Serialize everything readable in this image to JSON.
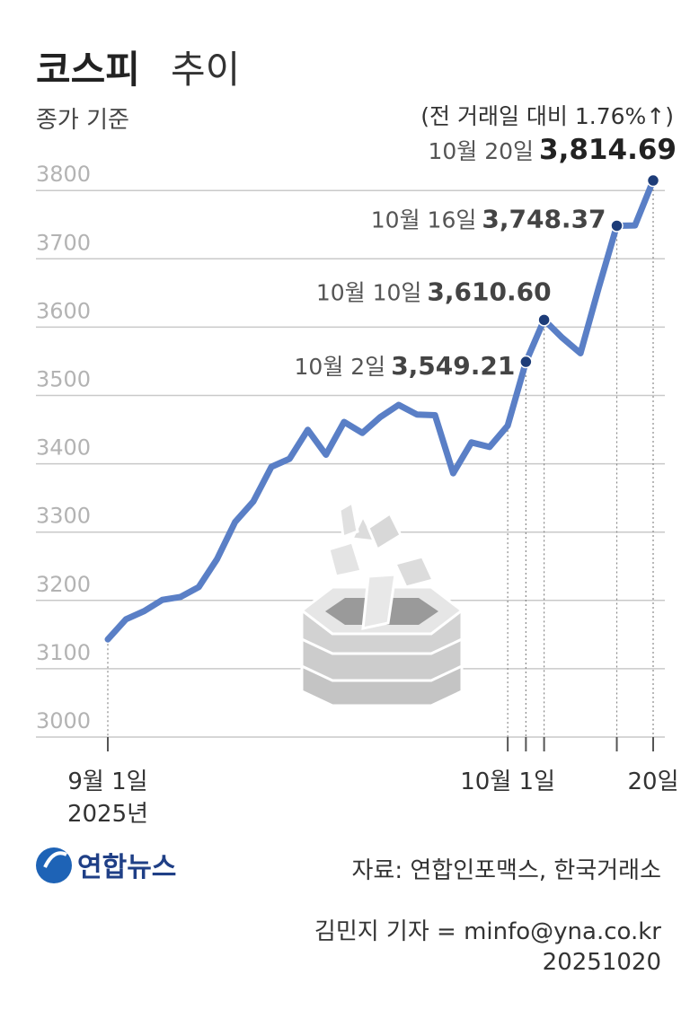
{
  "chart_data": {
    "type": "line",
    "title": "코스피",
    "title_suffix": "추이",
    "subtitle": "종가 기준",
    "note": "(전 거래일 대비 1.76%↑)",
    "categories": [
      "9월 1일",
      null,
      null,
      null,
      null,
      null,
      null,
      null,
      null,
      null,
      null,
      null,
      null,
      null,
      null,
      null,
      null,
      null,
      null,
      null,
      null,
      null,
      "10월 1일",
      null,
      null,
      null,
      null,
      null,
      null,
      null,
      "20일"
    ],
    "year_label": "2025년",
    "values": [
      3142.93,
      3172.35,
      3184.32,
      3200.83,
      3205.12,
      3219.59,
      3260.05,
      3314.53,
      3344.7,
      3395.54,
      3407.31,
      3449.62,
      3413.25,
      3461.3,
      3445.24,
      3468.65,
      3486.19,
      3472.14,
      3471.11,
      3386.05,
      3431.21,
      3424.6,
      3455.83,
      3549.21,
      3610.6,
      3584.55,
      3561.81,
      3657.28,
      3748.37,
      3748.89,
      3814.69
    ],
    "date_labels": [
      null,
      null,
      null,
      null,
      null,
      null,
      null,
      null,
      null,
      null,
      null,
      null,
      null,
      null,
      null,
      null,
      null,
      null,
      null,
      null,
      null,
      null,
      null,
      "10월 2일",
      "10월 10일",
      null,
      null,
      null,
      "10월 16일",
      null,
      "10월 20일"
    ],
    "value_labels": [
      null,
      null,
      null,
      null,
      null,
      null,
      null,
      null,
      null,
      null,
      null,
      null,
      null,
      null,
      null,
      null,
      null,
      null,
      null,
      null,
      null,
      null,
      null,
      "3,549.21",
      "3,610.60",
      null,
      null,
      null,
      "3,748.37",
      null,
      "3,814.69"
    ],
    "color": "#5a7fc6",
    "marker_color": "#1d3c78",
    "ylim": [
      3000,
      3850
    ],
    "yticks": [
      3000,
      3100,
      3200,
      3300,
      3400,
      3500,
      3600,
      3700,
      3800
    ],
    "grid": true
  },
  "source": "자료: 연합인포맥스, 한국거래소",
  "credit": "김민지 기자 = minfo@yna.co.kr",
  "date": "20251020",
  "logo": "연합뉴스"
}
